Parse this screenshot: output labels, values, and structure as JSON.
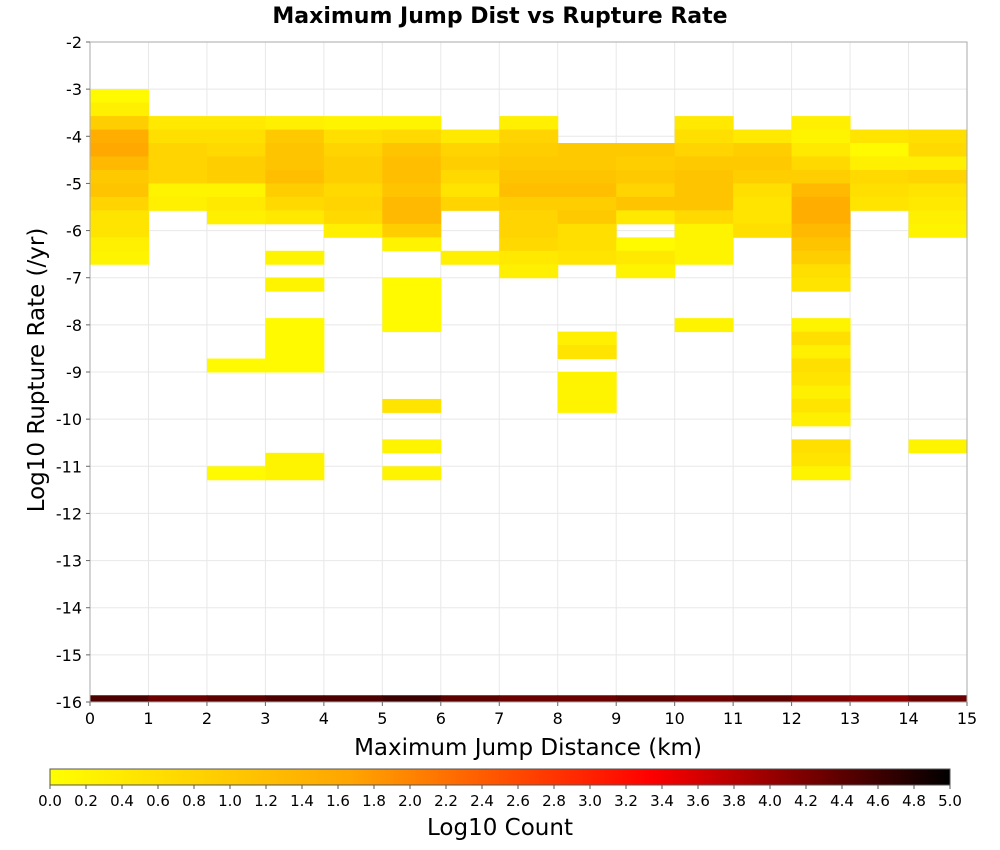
{
  "chart_data": {
    "type": "heatmap",
    "title": "Maximum Jump Dist vs Rupture Rate",
    "xlabel": "Maximum Jump Distance (km)",
    "ylabel": "Log10 Rupture Rate (/yr)",
    "xlim": [
      0,
      15
    ],
    "ylim": [
      -16,
      -2
    ],
    "x_ticks": [
      "0",
      "1",
      "2",
      "3",
      "4",
      "5",
      "6",
      "7",
      "8",
      "9",
      "10",
      "11",
      "12",
      "13",
      "14",
      "15"
    ],
    "y_ticks": [
      "-2",
      "-3",
      "-4",
      "-5",
      "-6",
      "-7",
      "-8",
      "-9",
      "-10",
      "-11",
      "-12",
      "-13",
      "-14",
      "-15",
      "-16"
    ],
    "grid": true,
    "x_bin_width": 1,
    "y_bin_height": 0.2857,
    "colorbar": {
      "label": "Log10 Count",
      "range": [
        0,
        5
      ],
      "colors": [
        "#ffff00",
        "#ffa500",
        "#ff0000",
        "#000000"
      ],
      "ticks": [
        "0.0",
        "0.2",
        "0.4",
        "0.6",
        "0.8",
        "1.0",
        "1.2",
        "1.4",
        "1.6",
        "1.8",
        "2.0",
        "2.2",
        "2.4",
        "2.6",
        "2.8",
        "3.0",
        "3.2",
        "3.4",
        "3.6",
        "3.8",
        "4.0",
        "4.2",
        "4.4",
        "4.6",
        "4.8",
        "5.0"
      ]
    },
    "cells": [
      [
        0,
        -3,
        0.1
      ],
      [
        0,
        -3.2857,
        0.3
      ],
      [
        0,
        -3.5714,
        0.9
      ],
      [
        0,
        -3.8571,
        1.5
      ],
      [
        0,
        -4.1429,
        1.6
      ],
      [
        0,
        -4.4286,
        1.3
      ],
      [
        0,
        -4.7143,
        1.0
      ],
      [
        0,
        -5.0,
        1.1
      ],
      [
        0,
        -5.2857,
        0.8
      ],
      [
        0,
        -5.5714,
        0.5
      ],
      [
        0,
        -5.8571,
        0.5
      ],
      [
        0,
        -6.1429,
        0.3
      ],
      [
        0,
        -6.4286,
        0.2
      ],
      [
        1,
        -3.5714,
        0.4
      ],
      [
        1,
        -3.8571,
        0.6
      ],
      [
        1,
        -4.1429,
        0.8
      ],
      [
        1,
        -4.4286,
        0.8
      ],
      [
        1,
        -4.7143,
        0.8
      ],
      [
        1,
        -5.0,
        0.2
      ],
      [
        1,
        -5.2857,
        0.3
      ],
      [
        2,
        -3.5714,
        0.4
      ],
      [
        2,
        -3.8571,
        0.6
      ],
      [
        2,
        -4.1429,
        0.7
      ],
      [
        2,
        -4.4286,
        0.9
      ],
      [
        2,
        -4.7143,
        0.9
      ],
      [
        2,
        -5.0,
        0.2
      ],
      [
        2,
        -5.2857,
        0.4
      ],
      [
        2,
        -5.5714,
        0.3
      ],
      [
        2,
        -8.7143,
        0.1
      ],
      [
        2,
        -11.0,
        0.1
      ],
      [
        3,
        -3.5714,
        0.3
      ],
      [
        3,
        -3.8571,
        1.0
      ],
      [
        3,
        -4.1429,
        1.1
      ],
      [
        3,
        -4.4286,
        1.1
      ],
      [
        3,
        -4.7143,
        1.2
      ],
      [
        3,
        -5.0,
        0.9
      ],
      [
        3,
        -5.2857,
        0.7
      ],
      [
        3,
        -5.5714,
        0.4
      ],
      [
        3,
        -6.4286,
        0.2
      ],
      [
        3,
        -7.0,
        0.2
      ],
      [
        3,
        -7.8571,
        0.1
      ],
      [
        3,
        -8.1429,
        0.1
      ],
      [
        3,
        -8.4286,
        0.1
      ],
      [
        3,
        -8.7143,
        0.1
      ],
      [
        3,
        -10.7143,
        0.2
      ],
      [
        3,
        -11.0,
        0.2
      ],
      [
        4,
        -3.5714,
        0.2
      ],
      [
        4,
        -3.8571,
        0.6
      ],
      [
        4,
        -4.1429,
        0.8
      ],
      [
        4,
        -4.4286,
        0.9
      ],
      [
        4,
        -4.7143,
        0.9
      ],
      [
        4,
        -5.0,
        0.7
      ],
      [
        4,
        -5.2857,
        0.8
      ],
      [
        4,
        -5.5714,
        0.7
      ],
      [
        4,
        -5.8571,
        0.3
      ],
      [
        5,
        -3.5714,
        0.2
      ],
      [
        5,
        -3.8571,
        0.7
      ],
      [
        5,
        -4.1429,
        1.1
      ],
      [
        5,
        -4.4286,
        1.2
      ],
      [
        5,
        -4.7143,
        1.2
      ],
      [
        5,
        -5.0,
        1.1
      ],
      [
        5,
        -5.2857,
        1.3
      ],
      [
        5,
        -5.5714,
        1.3
      ],
      [
        5,
        -5.8571,
        0.9
      ],
      [
        5,
        -6.1429,
        0.2
      ],
      [
        5,
        -7.0,
        0.1
      ],
      [
        5,
        -7.2857,
        0.1
      ],
      [
        5,
        -7.5714,
        0.1
      ],
      [
        5,
        -7.8571,
        0.1
      ],
      [
        5,
        -9.5714,
        0.5
      ],
      [
        5,
        -10.4286,
        0.2
      ],
      [
        5,
        -11.0,
        0.2
      ],
      [
        6,
        -3.8571,
        0.4
      ],
      [
        6,
        -4.1429,
        0.8
      ],
      [
        6,
        -4.4286,
        0.9
      ],
      [
        6,
        -4.7143,
        0.7
      ],
      [
        6,
        -5.0,
        0.5
      ],
      [
        6,
        -5.2857,
        0.8
      ],
      [
        6,
        -6.4286,
        0.3
      ],
      [
        7,
        -3.5714,
        0.3
      ],
      [
        7,
        -3.8571,
        0.8
      ],
      [
        7,
        -4.1429,
        0.9
      ],
      [
        7,
        -4.4286,
        1.0
      ],
      [
        7,
        -4.7143,
        1.1
      ],
      [
        7,
        -5.0,
        1.2
      ],
      [
        7,
        -5.2857,
        0.9
      ],
      [
        7,
        -5.5714,
        0.8
      ],
      [
        7,
        -5.8571,
        0.8
      ],
      [
        7,
        -6.1429,
        0.7
      ],
      [
        7,
        -6.4286,
        0.4
      ],
      [
        7,
        -6.7143,
        0.3
      ],
      [
        8,
        -4.1429,
        1.0
      ],
      [
        8,
        -4.4286,
        1.0
      ],
      [
        8,
        -4.7143,
        1.1
      ],
      [
        8,
        -5.0,
        1.2
      ],
      [
        8,
        -5.2857,
        0.9
      ],
      [
        8,
        -5.5714,
        1.0
      ],
      [
        8,
        -5.8571,
        0.6
      ],
      [
        8,
        -6.1429,
        0.6
      ],
      [
        8,
        -6.4286,
        0.5
      ],
      [
        8,
        -8.1429,
        0.3
      ],
      [
        8,
        -8.4286,
        0.5
      ],
      [
        8,
        -9.0,
        0.2
      ],
      [
        8,
        -9.2857,
        0.2
      ],
      [
        8,
        -9.5714,
        0.2
      ],
      [
        9,
        -4.1429,
        1.0
      ],
      [
        9,
        -4.4286,
        0.9
      ],
      [
        9,
        -4.7143,
        1.0
      ],
      [
        9,
        -5.0,
        0.8
      ],
      [
        9,
        -5.2857,
        1.1
      ],
      [
        9,
        -5.5714,
        0.4
      ],
      [
        9,
        -6.1429,
        0.1
      ],
      [
        9,
        -6.4286,
        0.4
      ],
      [
        9,
        -6.7143,
        0.2
      ],
      [
        10,
        -3.5714,
        0.4
      ],
      [
        10,
        -3.8571,
        0.6
      ],
      [
        10,
        -4.1429,
        0.8
      ],
      [
        10,
        -4.4286,
        1.0
      ],
      [
        10,
        -4.7143,
        1.1
      ],
      [
        10,
        -5.0,
        1.1
      ],
      [
        10,
        -5.2857,
        1.1
      ],
      [
        10,
        -5.5714,
        0.7
      ],
      [
        10,
        -5.8571,
        0.2
      ],
      [
        10,
        -6.1429,
        0.2
      ],
      [
        10,
        -6.4286,
        0.2
      ],
      [
        10,
        -7.8571,
        0.2
      ],
      [
        11,
        -3.8571,
        0.4
      ],
      [
        11,
        -4.1429,
        0.9
      ],
      [
        11,
        -4.4286,
        1.0
      ],
      [
        11,
        -4.7143,
        0.9
      ],
      [
        11,
        -5.0,
        0.6
      ],
      [
        11,
        -5.2857,
        0.5
      ],
      [
        11,
        -5.5714,
        0.5
      ],
      [
        11,
        -5.8571,
        0.6
      ],
      [
        12,
        -3.5714,
        0.3
      ],
      [
        12,
        -3.8571,
        0.2
      ],
      [
        12,
        -4.1429,
        0.4
      ],
      [
        12,
        -4.4286,
        0.7
      ],
      [
        12,
        -4.7143,
        0.9
      ],
      [
        12,
        -5.0,
        1.3
      ],
      [
        12,
        -5.2857,
        1.5
      ],
      [
        12,
        -5.5714,
        1.5
      ],
      [
        12,
        -5.8571,
        1.3
      ],
      [
        12,
        -6.1429,
        1.1
      ],
      [
        12,
        -6.4286,
        0.9
      ],
      [
        12,
        -6.7143,
        0.6
      ],
      [
        12,
        -7.0,
        0.5
      ],
      [
        12,
        -7.8571,
        0.2
      ],
      [
        12,
        -8.1429,
        0.6
      ],
      [
        12,
        -8.4286,
        0.3
      ],
      [
        12,
        -8.7143,
        0.6
      ],
      [
        12,
        -9.0,
        0.5
      ],
      [
        12,
        -9.2857,
        0.3
      ],
      [
        12,
        -9.5714,
        0.5
      ],
      [
        12,
        -9.8571,
        0.3
      ],
      [
        12,
        -10.4286,
        0.6
      ],
      [
        12,
        -10.7143,
        0.5
      ],
      [
        12,
        -11.0,
        0.2
      ],
      [
        13,
        -3.8571,
        0.5
      ],
      [
        13,
        -4.1429,
        0.1
      ],
      [
        13,
        -4.4286,
        0.3
      ],
      [
        13,
        -4.7143,
        0.7
      ],
      [
        13,
        -5.0,
        0.6
      ],
      [
        13,
        -5.2857,
        0.5
      ],
      [
        14,
        -3.8571,
        0.6
      ],
      [
        14,
        -4.1429,
        0.7
      ],
      [
        14,
        -4.4286,
        0.3
      ],
      [
        14,
        -4.7143,
        0.8
      ],
      [
        14,
        -5.0,
        0.5
      ],
      [
        14,
        -5.2857,
        0.4
      ],
      [
        14,
        -5.5714,
        0.3
      ],
      [
        14,
        -5.8571,
        0.2
      ],
      [
        14,
        -10.4286,
        0.2
      ]
    ],
    "bottom_row": {
      "y": -16,
      "height": 0.143,
      "values": [
        4.5,
        4.3,
        4.4,
        4.5,
        4.5,
        4.6,
        4.4,
        4.3,
        4.3,
        4.4,
        4.3,
        4.4,
        4.2,
        4.1,
        4.3
      ]
    }
  }
}
